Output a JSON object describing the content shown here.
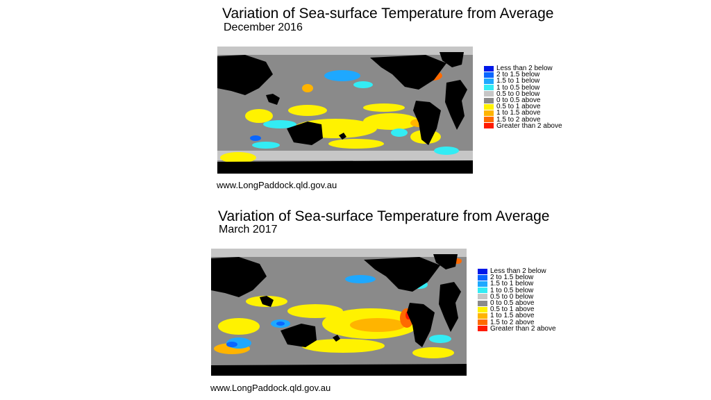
{
  "legend_items": [
    {
      "label": "Less than 2 below",
      "color": "#0018e8"
    },
    {
      "label": "2 to 1.5 below",
      "color": "#0a66ff"
    },
    {
      "label": "1.5 to 1 below",
      "color": "#1ea8ff"
    },
    {
      "label": "1 to 0.5 below",
      "color": "#33ecf4"
    },
    {
      "label": "0.5 to 0 below",
      "color": "#c6c6c6"
    },
    {
      "label": "0 to 0.5 above",
      "color": "#8a8a8a"
    },
    {
      "label": "0.5 to 1 above",
      "color": "#fff200"
    },
    {
      "label": "1 to 1.5 above",
      "color": "#ffb400"
    },
    {
      "label": "1.5 to 2 above",
      "color": "#ff6a00"
    },
    {
      "label": "Greater than 2 above",
      "color": "#ff1a00"
    }
  ],
  "land_color": "#000000",
  "panels": [
    {
      "title": "Variation of Sea-surface Temperature from Average",
      "subtitle": "December 2016",
      "source": "www.LongPaddock.qld.gov.au"
    },
    {
      "title": "Variation of Sea-surface Temperature from Average",
      "subtitle": "March 2017",
      "source": "www.LongPaddock.qld.gov.au"
    }
  ]
}
